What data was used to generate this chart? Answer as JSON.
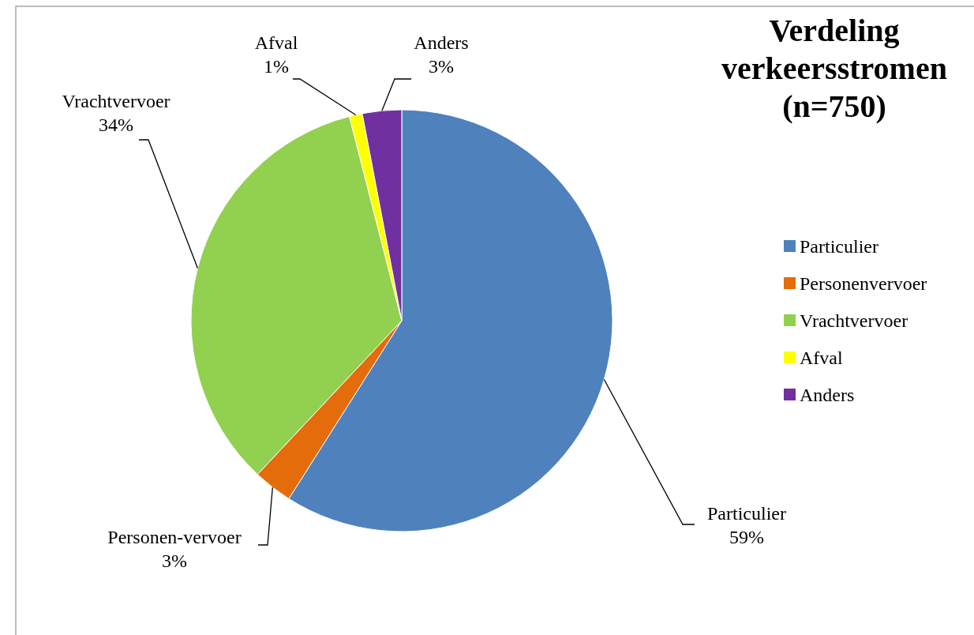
{
  "chart_data": {
    "type": "pie",
    "title": "Verdeling verkeersstromen (n=750)",
    "categories": [
      "Particulier",
      "Personenvervoer",
      "Vrachtvervoer",
      "Afval",
      "Anders"
    ],
    "values": [
      59,
      3,
      34,
      1,
      3
    ],
    "colors": [
      "#4f81bd",
      "#e46c0a",
      "#92d050",
      "#ffff00",
      "#7030a0"
    ],
    "value_labels": [
      "Particulier\n59%",
      "Personen-vervoer\n3%",
      "Vrachtvervoer\n34%",
      "Afval\n1%",
      "Anders\n3%"
    ],
    "legend": "right"
  }
}
